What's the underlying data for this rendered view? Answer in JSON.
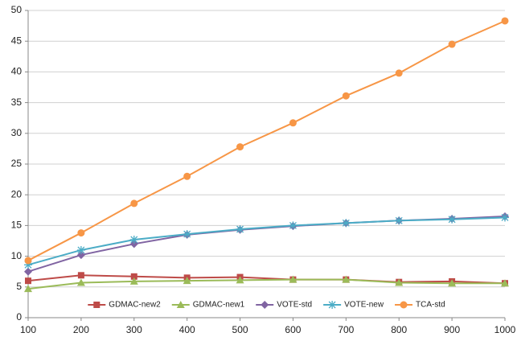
{
  "chart_data": {
    "type": "line",
    "x": [
      100,
      200,
      300,
      400,
      500,
      600,
      700,
      800,
      900,
      1000
    ],
    "xlim": [
      100,
      1000
    ],
    "xticks": [
      100,
      200,
      300,
      400,
      500,
      600,
      700,
      800,
      900,
      1000
    ],
    "ylim": [
      0,
      50
    ],
    "yticks": [
      0,
      5,
      10,
      15,
      20,
      25,
      30,
      35,
      40,
      45,
      50
    ],
    "grid": true,
    "legend": "bottom",
    "series": [
      {
        "name": "GDMAC-new2",
        "color": "#be4b48",
        "marker": "square",
        "values": [
          6.0,
          6.9,
          6.7,
          6.5,
          6.6,
          6.2,
          6.2,
          5.8,
          5.9,
          5.6
        ]
      },
      {
        "name": "GDMAC-new1",
        "color": "#9bbb59",
        "marker": "triangle",
        "values": [
          4.7,
          5.7,
          5.9,
          6.0,
          6.1,
          6.2,
          6.2,
          5.7,
          5.6,
          5.6
        ]
      },
      {
        "name": "VOTE-std",
        "color": "#8064a2",
        "marker": "diamond",
        "values": [
          7.5,
          10.2,
          12.0,
          13.5,
          14.3,
          14.9,
          15.4,
          15.8,
          16.1,
          16.5
        ]
      },
      {
        "name": "VOTE-new",
        "color": "#4bacc6",
        "marker": "star",
        "values": [
          8.6,
          11.0,
          12.7,
          13.6,
          14.4,
          15.0,
          15.4,
          15.8,
          16.0,
          16.3
        ]
      },
      {
        "name": "TCA-std",
        "color": "#f79646",
        "marker": "circle",
        "values": [
          9.3,
          13.8,
          18.6,
          23.0,
          27.8,
          31.7,
          36.1,
          39.8,
          44.5,
          48.3
        ]
      }
    ]
  }
}
